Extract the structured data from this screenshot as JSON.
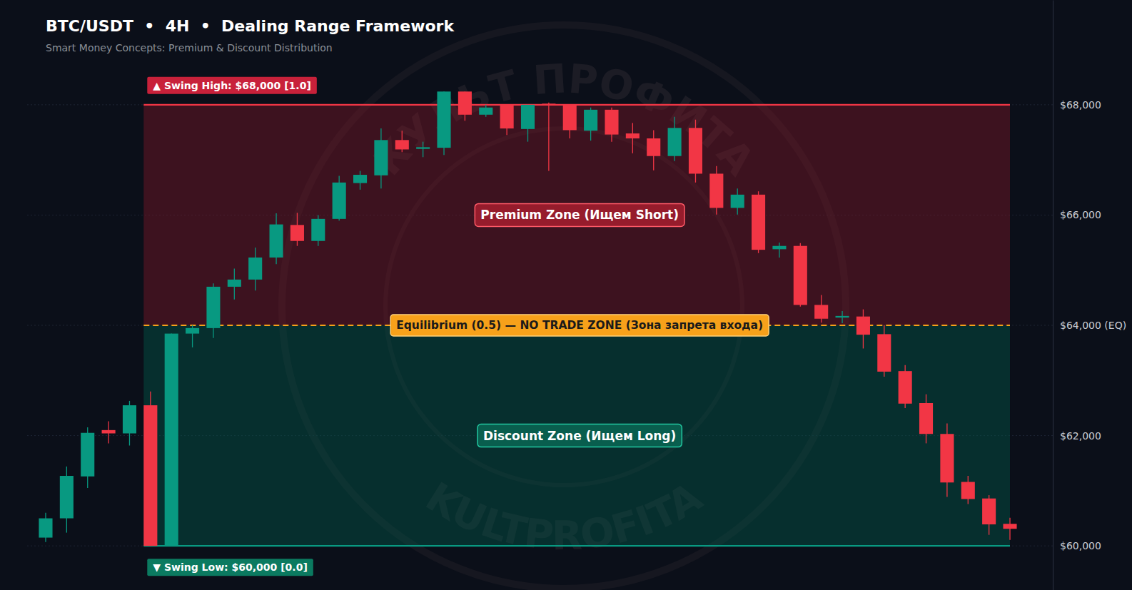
{
  "chart_data": {
    "type": "candlestick",
    "title": "BTC/USDT  •  4H  •  Dealing Range Framework",
    "subtitle": "Smart Money Concepts: Premium & Discount Distribution",
    "categories": [
      null,
      null,
      null,
      null,
      null,
      null,
      null,
      null,
      null,
      null,
      null,
      null,
      null,
      null,
      null,
      null,
      null,
      null,
      null,
      null,
      null,
      null,
      null,
      null,
      null,
      null,
      null,
      null,
      null,
      null,
      null,
      null,
      null,
      null,
      null,
      null,
      null,
      null,
      null,
      null,
      null,
      null,
      null,
      null,
      null,
      null,
      null
    ],
    "open": [
      60150,
      60500,
      61260,
      62100,
      62040,
      62550,
      60000,
      63850,
      63950,
      64700,
      64830,
      65230,
      65820,
      65530,
      65930,
      66580,
      66720,
      67360,
      67200,
      67220,
      68240,
      67820,
      68000,
      67560,
      68020,
      68000,
      67530,
      67910,
      67480,
      67390,
      67070,
      67580,
      66750,
      66130,
      66370,
      65380,
      65440,
      64370,
      64140,
      64160,
      63840,
      63170,
      62590,
      62030,
      61160,
      60860,
      60400
    ],
    "high": [
      60600,
      61440,
      62150,
      62260,
      62630,
      62800,
      63850,
      64000,
      64760,
      65030,
      65410,
      66030,
      66040,
      66000,
      66710,
      66800,
      67570,
      67530,
      67330,
      68240,
      68240,
      68000,
      68000,
      68000,
      68040,
      68000,
      67950,
      67950,
      67670,
      67540,
      67780,
      67730,
      66890,
      66480,
      66430,
      65500,
      65490,
      64550,
      64260,
      64290,
      64000,
      63280,
      62750,
      62220,
      61270,
      60920,
      60510
    ],
    "low": [
      60070,
      60240,
      61050,
      61860,
      61820,
      60000,
      60000,
      63600,
      63770,
      64470,
      64630,
      65110,
      65440,
      65440,
      65900,
      66460,
      66480,
      67140,
      67050,
      67090,
      67710,
      67780,
      67450,
      67330,
      66800,
      67390,
      67350,
      67330,
      67120,
      66810,
      66980,
      66590,
      66010,
      66010,
      65310,
      65230,
      64340,
      64050,
      64040,
      63580,
      63070,
      62500,
      61860,
      60890,
      60760,
      60200,
      60110
    ],
    "close": [
      60500,
      61270,
      62050,
      62040,
      62550,
      60000,
      63850,
      63950,
      64700,
      64830,
      65230,
      65830,
      65530,
      65930,
      66590,
      66730,
      67360,
      67190,
      67230,
      68240,
      67820,
      67950,
      67570,
      68000,
      68000,
      67540,
      67910,
      67460,
      67390,
      67070,
      67580,
      66750,
      66130,
      66370,
      65370,
      65440,
      64370,
      64120,
      64170,
      63830,
      63160,
      62580,
      62030,
      61150,
      60850,
      60390,
      60310
    ],
    "ylim": [
      59200,
      69900
    ],
    "yticks": [
      {
        "value": 60000,
        "label": "$60,000"
      },
      {
        "value": 62000,
        "label": "$62,000"
      },
      {
        "value": 64000,
        "label": "$64,000 (EQ)"
      },
      {
        "value": 66000,
        "label": "$66,000"
      },
      {
        "value": 68000,
        "label": "$68,000"
      }
    ],
    "grid": true,
    "tick_labels": "y",
    "zones": [
      {
        "label": "Premium Zone (Ищем Short)",
        "from": 64000,
        "to": 68000
      },
      {
        "label": "Discount Zone (Ищем Long)",
        "from": 60000,
        "to": 64000
      }
    ],
    "levels": [
      {
        "label": "▲ Swing High: $68,000 [1.0]",
        "value": 68000
      },
      {
        "label": "Equilibrium (0.5) — NO TRADE ZONE (Зона запрета входа)",
        "value": 64000
      },
      {
        "label": "▼ Swing Low: $60,000 [0.0]",
        "value": 60000
      }
    ],
    "watermark": [
      "КУЛЬТ ПРОФИТА",
      "KULTPROFITA"
    ]
  }
}
